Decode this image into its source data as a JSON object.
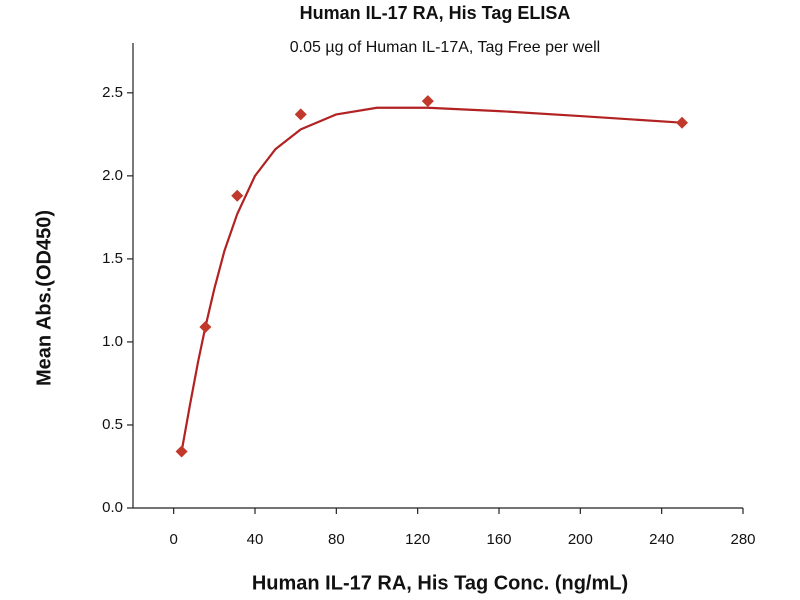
{
  "chart_data": {
    "type": "scatter",
    "title": "Human IL-17 RA, His Tag ELISA",
    "subtitle": "0.05 µg of Human IL-17A, Tag Free per well",
    "x_label": "Human IL-17 RA, His Tag Conc. (ng/mL)",
    "y_label": "Mean Abs.(OD450)",
    "x": [
      3.9,
      15.6,
      31.25,
      62.5,
      125,
      250
    ],
    "values": [
      0.34,
      1.09,
      1.88,
      2.37,
      2.45,
      2.32
    ],
    "color": "#c0392b",
    "curve": {
      "color": "#b22222",
      "x": [
        3.9,
        8,
        12,
        15.6,
        20,
        25,
        31.25,
        40,
        50,
        62.5,
        80,
        100,
        125,
        160,
        200,
        250
      ],
      "values": [
        0.34,
        0.62,
        0.88,
        1.09,
        1.32,
        1.55,
        1.77,
        2.0,
        2.16,
        2.28,
        2.37,
        2.41,
        2.41,
        2.39,
        2.36,
        2.32
      ]
    },
    "xlim": [
      -20,
      280
    ],
    "ylim": [
      0,
      2.8
    ],
    "xticks": [
      0,
      40,
      80,
      120,
      160,
      200,
      240,
      280
    ],
    "yticks": [
      {
        "value": 0,
        "label": "0.0"
      },
      0.5,
      {
        "value": 1,
        "label": "1.0"
      },
      1.5,
      {
        "value": 2,
        "label": "2.0"
      },
      2.5
    ],
    "grid": false
  }
}
